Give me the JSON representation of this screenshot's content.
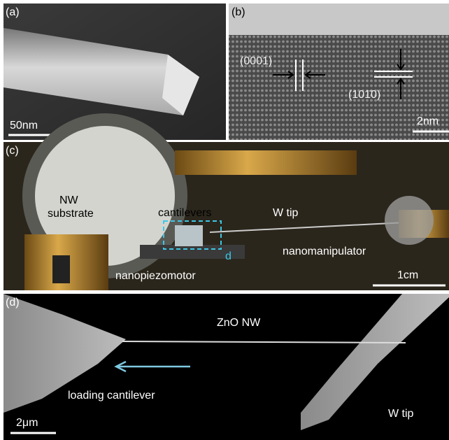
{
  "panels": [
    {
      "label": "(a)",
      "scale_bar": "50nm"
    },
    {
      "label": "(b)",
      "annotations": [
        "(0001)",
        "(101̄0)"
      ],
      "scale_bar": "2nm"
    },
    {
      "label": "(c)",
      "annotations": [
        "NW",
        "substrate",
        "cantilevers",
        "W tip",
        "d",
        "nanomanipulator",
        "nanopiezomotor"
      ],
      "scale_bar": "1cm"
    },
    {
      "label": "(d)",
      "annotations": [
        "ZnO NW",
        "loading cantilever",
        "W tip"
      ],
      "scale_bar": "2μm"
    }
  ]
}
